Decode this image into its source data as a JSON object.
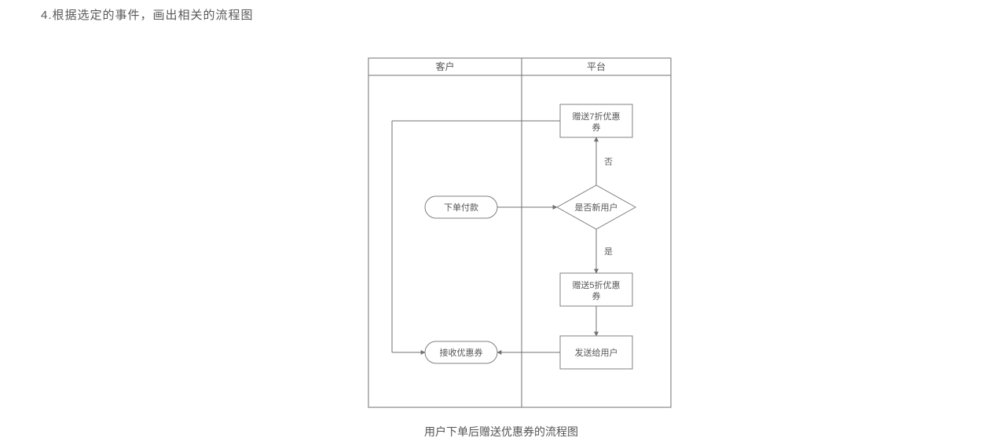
{
  "heading": "4.根据选定的事件，画出相关的流程图",
  "caption": "用户下单后赠送优惠券的流程图",
  "flowchart": {
    "type": "flowchart",
    "swimlanes": [
      {
        "id": "customer",
        "label": "客户"
      },
      {
        "id": "platform",
        "label": "平台"
      }
    ],
    "nodes": {
      "order": {
        "label": "下单付款",
        "shape": "capsule"
      },
      "coupon7": {
        "label1": "赠送7折优惠",
        "label2": "券",
        "shape": "rect"
      },
      "isNew": {
        "label": "是否新用户",
        "shape": "diamond"
      },
      "coupon5": {
        "label1": "赠送5折优惠",
        "label2": "券",
        "shape": "rect"
      },
      "send": {
        "label": "发送给用户",
        "shape": "rect"
      },
      "receive": {
        "label": "接收优惠券",
        "shape": "capsule"
      }
    },
    "edgeLabels": {
      "no": "否",
      "yes": "是"
    },
    "style": {
      "stroke": "#707070",
      "headerStroke": "#707070",
      "nodeStroke": "#808080",
      "nodeFill": "#ffffff",
      "labelColor": "#555555",
      "edgeLabelColor": "#666666",
      "fontSize": 11,
      "headerFontSize": 12,
      "lineWidth": 1,
      "outerWidth": 385,
      "outerHeight": 445,
      "headerHeight": 22,
      "laneSplitX": 195,
      "background": "#ffffff"
    }
  }
}
